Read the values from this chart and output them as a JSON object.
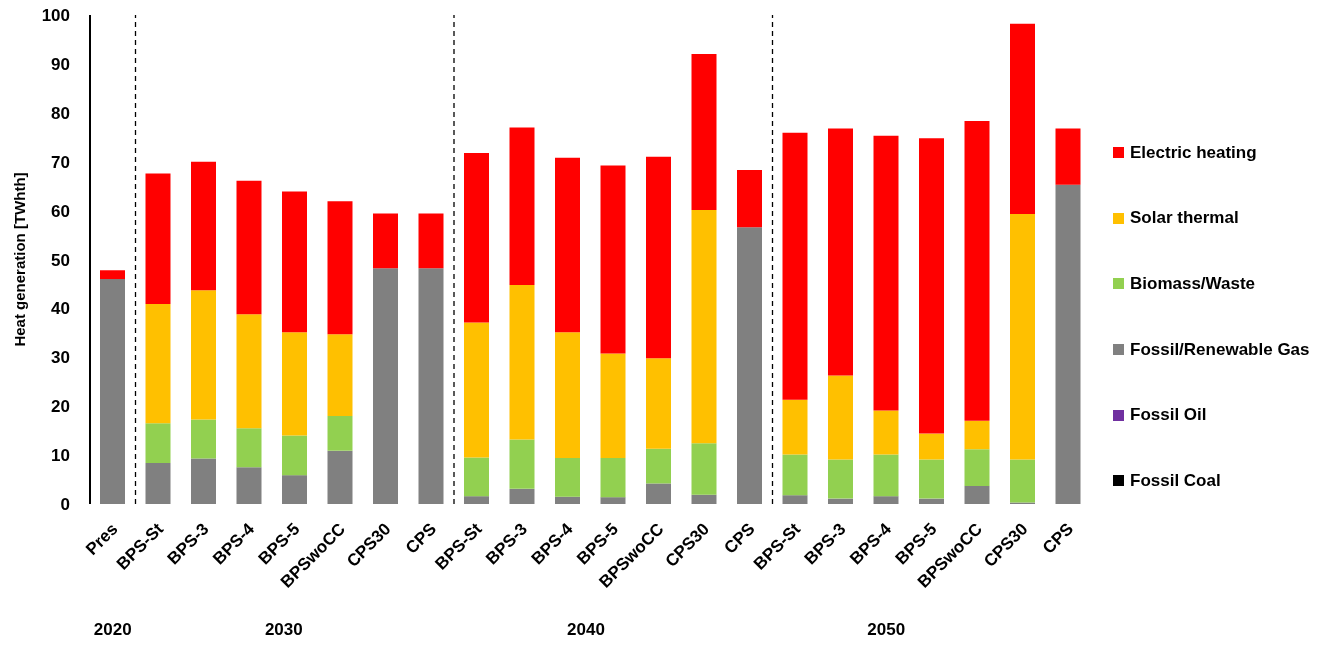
{
  "chart_data": {
    "type": "bar",
    "stacked": true,
    "ylabel": "Heat generation [TWhth]",
    "categories": [
      "Pres",
      "BPS-St",
      "BPS-3",
      "BPS-4",
      "BPS-5",
      "BPSwoCC",
      "CPS30",
      "CPS",
      "BPS-St",
      "BPS-3",
      "BPS-4",
      "BPS-5",
      "BPSwoCC",
      "CPS30",
      "CPS",
      "BPS-St",
      "BPS-3",
      "BPS-4",
      "BPS-5",
      "BPSwoCC",
      "CPS30",
      "CPS"
    ],
    "ylim": [
      0,
      100
    ],
    "yticks": [
      0,
      10,
      20,
      30,
      40,
      50,
      60,
      70,
      80,
      90,
      100
    ],
    "legend": "right",
    "series": [
      {
        "name": "Fossil Coal",
        "color": "#000000",
        "values": [
          0,
          0,
          0,
          0,
          0,
          0,
          0,
          0,
          0,
          0,
          0,
          0,
          0,
          0,
          0,
          0,
          0,
          0,
          0,
          0,
          0,
          0
        ]
      },
      {
        "name": "Fossil Oil",
        "color": "#7030a0",
        "values": [
          0,
          0,
          0,
          0,
          0,
          0,
          0,
          0,
          0,
          0,
          0,
          0,
          0,
          0,
          0,
          0,
          0,
          0,
          0,
          0,
          0,
          0
        ]
      },
      {
        "name": "Fossil/Renewable Gas",
        "color": "#808080",
        "values": [
          46.0,
          8.4,
          9.3,
          7.5,
          5.9,
          10.9,
          48.2,
          48.2,
          1.6,
          3.1,
          1.5,
          1.4,
          4.2,
          1.9,
          56.6,
          1.8,
          1.1,
          1.6,
          1.1,
          3.7,
          0.3,
          65.3
        ]
      },
      {
        "name": "Biomass/Waste",
        "color": "#92d050",
        "values": [
          0,
          8.1,
          8.0,
          8.0,
          8.1,
          7.1,
          0,
          0,
          7.9,
          10.1,
          7.9,
          8.0,
          7.1,
          10.5,
          0,
          8.3,
          8.0,
          8.5,
          8.0,
          7.5,
          8.8,
          0
        ]
      },
      {
        "name": "Solar thermal",
        "color": "#ffc000",
        "values": [
          0,
          24.4,
          26.4,
          23.3,
          21.1,
          16.7,
          0,
          0,
          27.6,
          31.6,
          25.7,
          21.4,
          18.5,
          47.7,
          0,
          11.2,
          17.2,
          9.0,
          5.3,
          5.8,
          50.2,
          0
        ]
      },
      {
        "name": "Electric heating",
        "color": "#ff0000",
        "values": [
          1.8,
          26.7,
          26.3,
          27.3,
          28.8,
          27.2,
          11.2,
          11.2,
          34.7,
          32.2,
          35.7,
          38.4,
          41.2,
          31.9,
          11.7,
          54.6,
          50.5,
          56.2,
          60.4,
          61.3,
          38.9,
          11.5
        ]
      }
    ],
    "annotations": [
      "2020",
      "2030",
      "2040",
      "2050"
    ]
  }
}
